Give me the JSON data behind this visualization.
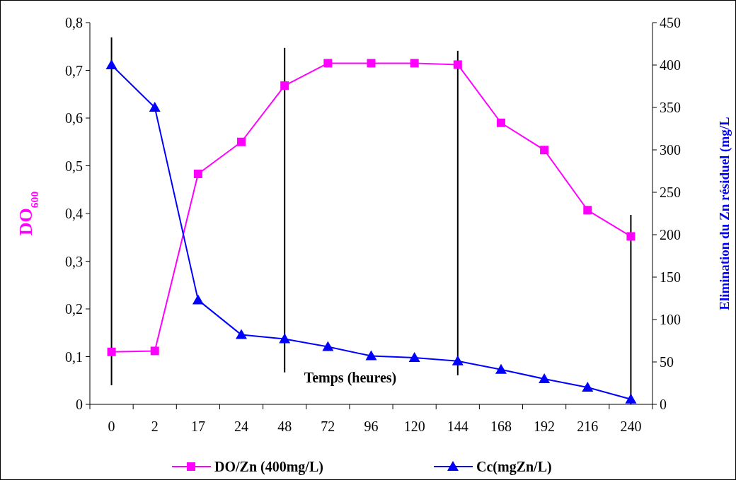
{
  "chart_data": {
    "type": "line",
    "xlabel": "Temps (heures)",
    "ylabel": "DO$_{600}$",
    "y2label": "Elimination du Zn résiduel (mg/L",
    "categories": [
      "0",
      "2",
      "17",
      "24",
      "48",
      "72",
      "96",
      "120",
      "144",
      "168",
      "192",
      "216",
      "240"
    ],
    "ylim": [
      0,
      0.8
    ],
    "yticks": [
      0,
      {
        "value": 0.1,
        "label": "0,1"
      },
      {
        "value": 0.2,
        "label": "0,2"
      },
      {
        "value": 0.3,
        "label": "0,3"
      },
      {
        "value": 0.4,
        "label": "0,4"
      },
      {
        "value": 0.5,
        "label": "0,5"
      },
      {
        "value": 0.6,
        "label": "0,6"
      },
      {
        "value": 0.7,
        "label": "0,7"
      },
      {
        "value": 0.8,
        "label": "0,8"
      }
    ],
    "y2lim": [
      0,
      450
    ],
    "y2ticks": [
      0,
      50,
      100,
      150,
      200,
      250,
      300,
      350,
      400,
      450
    ],
    "legend": "bottom",
    "series": [
      {
        "name": "DO/Zn (400mg/L)",
        "color": "#ff00ff",
        "marker": "square",
        "values": [
          0.11,
          0.112,
          0.483,
          0.55,
          0.668,
          0.715,
          0.715,
          0.715,
          0.712,
          0.59,
          0.533,
          0.407,
          0.352
        ],
        "errors": [
          [
            0.04,
            0.769
          ],
          null,
          null,
          null,
          [
            0.067,
            0.747
          ],
          null,
          null,
          null,
          [
            0.061,
            0.741
          ],
          null,
          null,
          null,
          [
            0,
            0.397
          ]
        ]
      },
      {
        "name": "Cc(mgZn/L)",
        "color": "#0000ff",
        "marker": "triangle",
        "axis": "y2",
        "values": [
          400,
          350,
          123,
          82,
          77,
          68,
          57,
          55,
          51,
          41,
          30,
          20,
          6
        ]
      }
    ]
  }
}
